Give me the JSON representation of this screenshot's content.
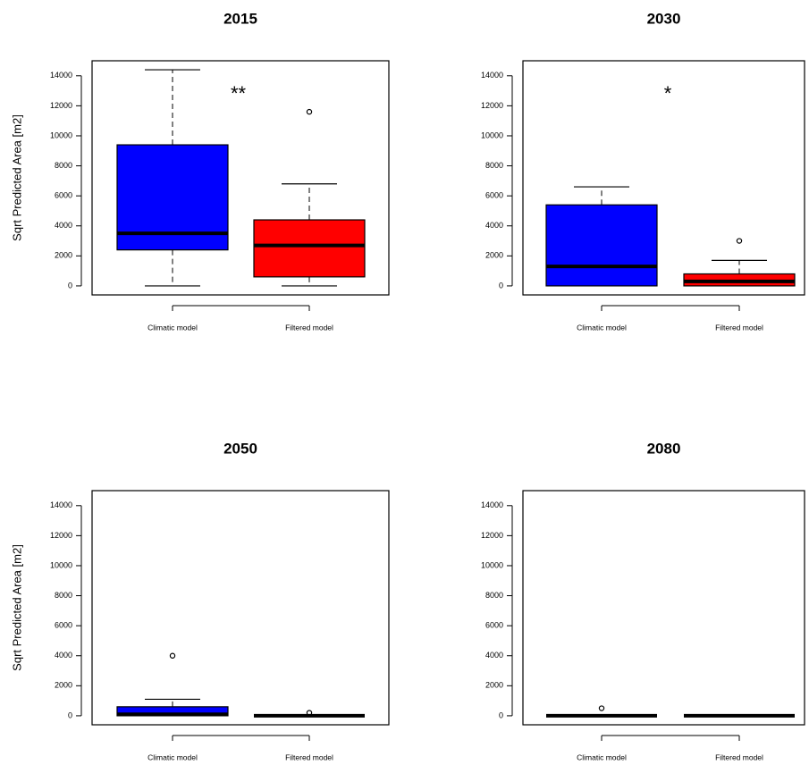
{
  "chart_data": [
    {
      "type": "box",
      "title": "2015",
      "ylabel": "Sqrt Predicted Area [m2]",
      "annotation": "**",
      "categories": [
        "Climatic model",
        "Filtered model"
      ],
      "colors": [
        "#0000ff",
        "#ff0000"
      ],
      "boxes": [
        {
          "min": 0,
          "q1": 2400,
          "median": 3500,
          "q3": 9400,
          "max": 14400,
          "outliers": []
        },
        {
          "min": 0,
          "q1": 600,
          "median": 2700,
          "q3": 4400,
          "max": 6800,
          "outliers": [
            11600
          ]
        }
      ],
      "ylim": [
        -600,
        15000
      ],
      "yticks": [
        0,
        2000,
        4000,
        6000,
        8000,
        10000,
        12000,
        14000
      ]
    },
    {
      "type": "box",
      "title": "2030",
      "annotation": "*",
      "categories": [
        "Climatic model",
        "Filtered model"
      ],
      "colors": [
        "#0000ff",
        "#ff0000"
      ],
      "boxes": [
        {
          "min": 0,
          "q1": 0,
          "median": 1300,
          "q3": 5400,
          "max": 6600,
          "outliers": []
        },
        {
          "min": 0,
          "q1": 0,
          "median": 300,
          "q3": 800,
          "max": 1700,
          "outliers": [
            3000
          ]
        }
      ],
      "ylim": [
        -600,
        15000
      ],
      "yticks": [
        0,
        2000,
        4000,
        6000,
        8000,
        10000,
        12000,
        14000
      ]
    },
    {
      "type": "box",
      "title": "2050",
      "ylabel": "Sqrt Predicted Area [m2]",
      "categories": [
        "Climatic model",
        "Filtered model"
      ],
      "colors": [
        "#0000ff",
        "#ff0000"
      ],
      "boxes": [
        {
          "min": 0,
          "q1": 0,
          "median": 100,
          "q3": 600,
          "max": 1100,
          "outliers": [
            4000
          ]
        },
        {
          "min": 0,
          "q1": 0,
          "median": 0,
          "q3": 0,
          "max": 0,
          "outliers": [
            200
          ]
        }
      ],
      "ylim": [
        -600,
        15000
      ],
      "yticks": [
        0,
        2000,
        4000,
        6000,
        8000,
        10000,
        12000,
        14000
      ]
    },
    {
      "type": "box",
      "title": "2080",
      "categories": [
        "Climatic model",
        "Filtered model"
      ],
      "colors": [
        "#0000ff",
        "#ff0000"
      ],
      "boxes": [
        {
          "min": 0,
          "q1": 0,
          "median": 0,
          "q3": 0,
          "max": 0,
          "outliers": [
            500
          ]
        },
        {
          "min": 0,
          "q1": 0,
          "median": 0,
          "q3": 0,
          "max": 0,
          "outliers": []
        }
      ],
      "ylim": [
        -600,
        15000
      ],
      "yticks": [
        0,
        2000,
        4000,
        6000,
        8000,
        10000,
        12000,
        14000
      ]
    }
  ]
}
